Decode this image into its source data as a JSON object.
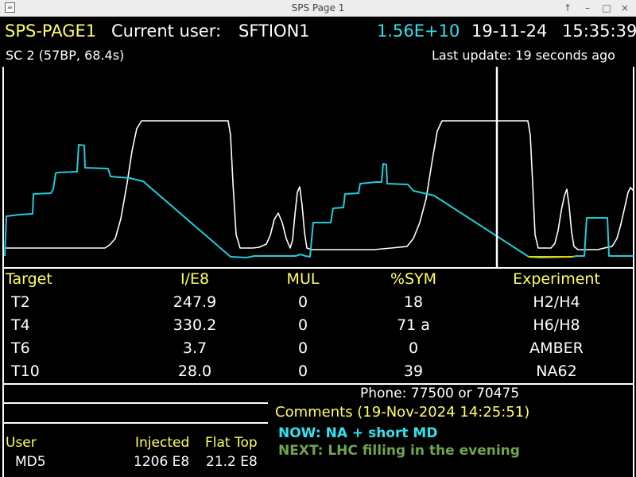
{
  "window": {
    "title": "SPS Page 1",
    "buttons": {
      "up": "↑",
      "minimize": "–",
      "maximize": "□",
      "close": "×"
    }
  },
  "header": {
    "page_name": "SPS-PAGE1",
    "user_label": "Current user:",
    "user_value": "SFTION1",
    "intensity": "1.56E+10",
    "date": "19-11-24",
    "time": "15:35:39",
    "cycle": "SC 2 (57BP, 68.4s)",
    "last_update": "Last update: 19 seconds ago"
  },
  "colors": {
    "background": "#000000",
    "header_yellow": "#ffff66",
    "intensity_cyan": "#33e0ee",
    "now_cyan": "#33e0ee",
    "next_green": "#6fa550",
    "trace_magnetic": "#ffffff",
    "trace_intensity": "#22cbdc",
    "marker_line": "#ffffff",
    "extraction_yellow": "#f0d000"
  },
  "targets": {
    "columns": [
      "Target",
      "I/E8",
      "MUL",
      "%SYM",
      "Experiment"
    ],
    "rows": [
      {
        "target": "T2",
        "intensity": "247.9",
        "mul": "0",
        "sym": "18",
        "experiment": "H2/H4"
      },
      {
        "target": "T4",
        "intensity": "330.2",
        "mul": "0",
        "sym": "71 a",
        "experiment": "H6/H8"
      },
      {
        "target": "T6",
        "intensity": "3.7",
        "mul": "0",
        "sym": "0",
        "experiment": "AMBER"
      },
      {
        "target": "T10",
        "intensity": "28.0",
        "mul": "0",
        "sym": "39",
        "experiment": "NA62"
      }
    ]
  },
  "contact": {
    "phone": "Phone: 77500 or 70475"
  },
  "comments": {
    "title": "Comments (19-Nov-2024 14:25:51)",
    "now": "NOW: NA + short MD",
    "next": "NEXT: LHC filling in the evening"
  },
  "beam_info": {
    "user_label": "User",
    "injected_label": "Injected",
    "flattop_label": "Flat Top",
    "user_value": "MD5",
    "injected_value": "1206 E8",
    "flattop_value": "21.2 E8"
  }
}
